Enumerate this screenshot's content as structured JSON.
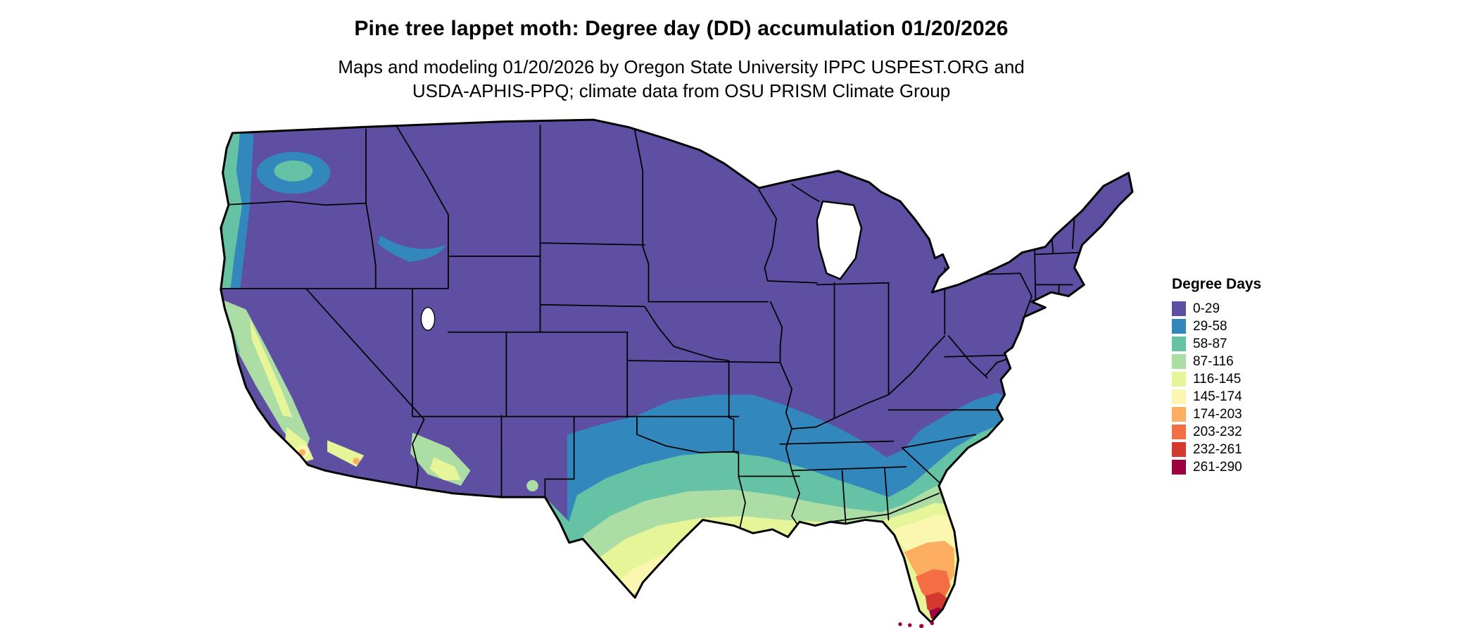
{
  "header": {
    "title": "Pine tree lappet moth: Degree day (DD) accumulation 01/20/2026",
    "subtitle_line1": "Maps and modeling 01/20/2026 by Oregon State University IPPC USPEST.ORG and",
    "subtitle_line2": "USDA-APHIS-PPQ; climate data from OSU PRISM Climate Group"
  },
  "map": {
    "label": "Contiguous United States degree-day accumulation choropleth",
    "outline_color": "#000000",
    "water_color": "#ffffff"
  },
  "legend": {
    "title": "Degree Days",
    "items": [
      {
        "label": "0-29",
        "color": "#5e4fa2"
      },
      {
        "label": "29-58",
        "color": "#3288bd"
      },
      {
        "label": "58-87",
        "color": "#66c2a5"
      },
      {
        "label": "87-116",
        "color": "#abdda4"
      },
      {
        "label": "116-145",
        "color": "#e6f598"
      },
      {
        "label": "145-174",
        "color": "#fbf7b0"
      },
      {
        "label": "174-203",
        "color": "#fdae61"
      },
      {
        "label": "203-232",
        "color": "#f46d43"
      },
      {
        "label": "232-261",
        "color": "#d5392e"
      },
      {
        "label": "261-290",
        "color": "#9e0142"
      }
    ]
  }
}
